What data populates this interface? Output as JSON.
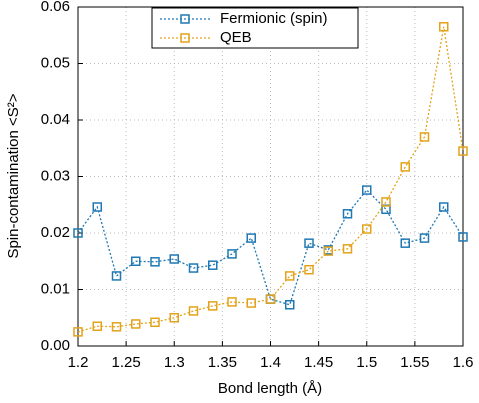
{
  "chart_data": {
    "type": "line",
    "x_label": "Bond length (Å)",
    "y_label": "Spin-contamination <S²>",
    "x": [
      1.2,
      1.22,
      1.24,
      1.26,
      1.28,
      1.3,
      1.32,
      1.34,
      1.36,
      1.38,
      1.4,
      1.42,
      1.44,
      1.46,
      1.48,
      1.5,
      1.52,
      1.54,
      1.56,
      1.58,
      1.6
    ],
    "series": [
      {
        "name": "Fermionic (spin)",
        "color": "#1f78b4",
        "values": [
          0.02,
          0.0246,
          0.0124,
          0.015,
          0.0149,
          0.0154,
          0.0138,
          0.0143,
          0.0163,
          0.0191,
          0.0083,
          0.0073,
          0.0182,
          0.017,
          0.0234,
          0.0276,
          0.0242,
          0.0182,
          0.0191,
          0.0246,
          0.0193
        ]
      },
      {
        "name": "QEB",
        "color": "#e3a21a",
        "values": [
          0.0025,
          0.0035,
          0.0034,
          0.0039,
          0.0042,
          0.005,
          0.0062,
          0.0071,
          0.0078,
          0.0076,
          0.0083,
          0.0124,
          0.0135,
          0.0168,
          0.0172,
          0.0207,
          0.0255,
          0.0317,
          0.037,
          0.0565,
          0.0345
        ]
      }
    ],
    "xlim": [
      1.2,
      1.6
    ],
    "xticks": [
      1.2,
      1.25,
      1.3,
      1.35,
      1.4,
      1.45,
      1.5,
      1.55,
      1.6
    ],
    "ylim": [
      0,
      0.06
    ],
    "yticks": [
      {
        "value": 0,
        "label": "0.00"
      },
      0.01,
      0.02,
      0.03,
      0.04,
      0.05,
      0.06
    ],
    "grid": true,
    "legend": "top"
  }
}
